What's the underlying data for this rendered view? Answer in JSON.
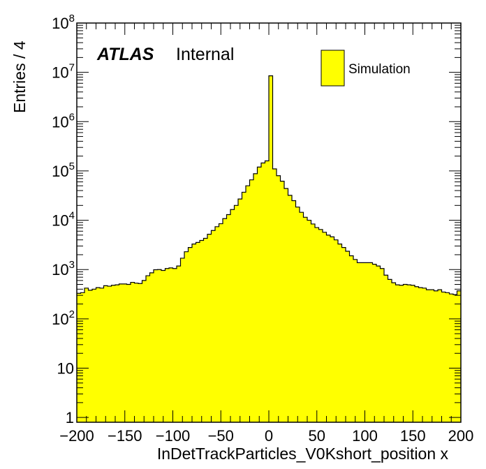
{
  "chart_data": {
    "type": "bar",
    "subtype": "histogram",
    "xlabel": "InDetTrackParticles_V0Kshort_position x",
    "ylabel": "Entries / 4",
    "xlim": [
      -200,
      200
    ],
    "ylim": [
      0.8,
      100000000
    ],
    "y_scale": "log",
    "bin_width": 4,
    "experiment_label": "ATLAS",
    "status_label": "Internal",
    "fill_color": "#ffff00",
    "line_color": "#000000",
    "legend_position": "top-right",
    "x_ticks": [
      "−200",
      "−150",
      "−100",
      "−50",
      "0",
      "50",
      "100",
      "150",
      "200"
    ],
    "y_ticks": [
      {
        "value": 1,
        "label": "1"
      },
      {
        "value": 10,
        "label": "10"
      },
      {
        "value": 100,
        "label": "10",
        "exp": "2"
      },
      {
        "value": 1000,
        "label": "10",
        "exp": "3"
      },
      {
        "value": 10000,
        "label": "10",
        "exp": "4"
      },
      {
        "value": 100000,
        "label": "10",
        "exp": "5"
      },
      {
        "value": 1000000,
        "label": "10",
        "exp": "6"
      },
      {
        "value": 10000000,
        "label": "10",
        "exp": "7"
      },
      {
        "value": 100000000,
        "label": "10",
        "exp": "8"
      }
    ],
    "series": [
      {
        "name": "Simulation",
        "bin_edges_start": -200,
        "values": [
          330,
          340,
          420,
          380,
          400,
          430,
          420,
          470,
          460,
          480,
          490,
          510,
          510,
          500,
          550,
          530,
          520,
          600,
          750,
          860,
          990,
          1000,
          960,
          1050,
          1080,
          1050,
          1180,
          1700,
          2300,
          2800,
          3300,
          3550,
          3900,
          4300,
          5200,
          6200,
          7400,
          8500,
          10800,
          13000,
          16500,
          20000,
          27000,
          37000,
          50000,
          66000,
          88000,
          120000,
          145000,
          160000,
          8500000,
          110000,
          80000,
          62000,
          44000,
          32000,
          25000,
          18500,
          14500,
          11500,
          10000,
          8400,
          7100,
          6500,
          5700,
          5000,
          4600,
          4000,
          3300,
          2800,
          2350,
          1900,
          1600,
          1380,
          1380,
          1380,
          1380,
          1280,
          1180,
          1050,
          770,
          630,
          540,
          490,
          480,
          500,
          490,
          480,
          450,
          430,
          420,
          390,
          390,
          370,
          390,
          350,
          340,
          320,
          310,
          370
        ]
      }
    ]
  }
}
